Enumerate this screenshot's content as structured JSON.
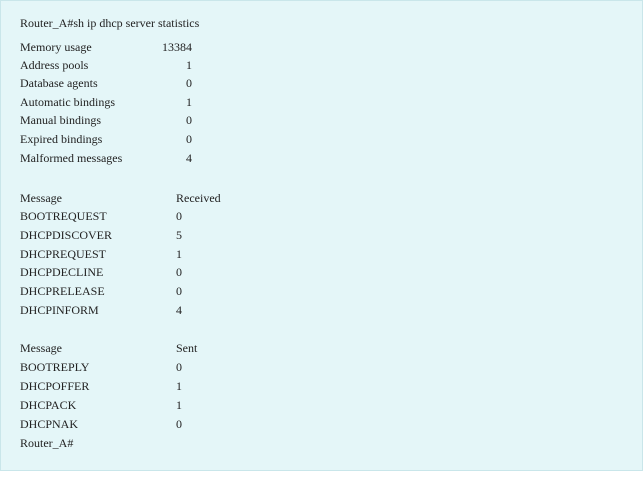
{
  "prompt_command": "Router_A#sh ip dhcp server statistics",
  "stats": [
    {
      "label": "Memory usage",
      "value": "13384"
    },
    {
      "label": "Address pools",
      "value": "1"
    },
    {
      "label": "Database agents",
      "value": "0"
    },
    {
      "label": "Automatic bindings",
      "value": "1"
    },
    {
      "label": "Manual bindings",
      "value": "0"
    },
    {
      "label": "Expired bindings",
      "value": "0"
    },
    {
      "label": "Malformed messages",
      "value": "4"
    }
  ],
  "received_table": {
    "header": {
      "label": "Message",
      "value": "Received"
    },
    "rows": [
      {
        "label": "BOOTREQUEST",
        "value": "0"
      },
      {
        "label": "DHCPDISCOVER",
        "value": "5"
      },
      {
        "label": "DHCPREQUEST",
        "value": "1"
      },
      {
        "label": "DHCPDECLINE",
        "value": "0"
      },
      {
        "label": "DHCPRELEASE",
        "value": "0"
      },
      {
        "label": "DHCPINFORM",
        "value": "4"
      }
    ]
  },
  "sent_table": {
    "header": {
      "label": "Message",
      "value": "Sent"
    },
    "rows": [
      {
        "label": "BOOTREPLY",
        "value": "0"
      },
      {
        "label": "DHCPOFFER",
        "value": "1"
      },
      {
        "label": "DHCPACK",
        "value": "1"
      },
      {
        "label": "DHCPNAK",
        "value": "0"
      }
    ]
  },
  "prompt_end": "Router_A#"
}
